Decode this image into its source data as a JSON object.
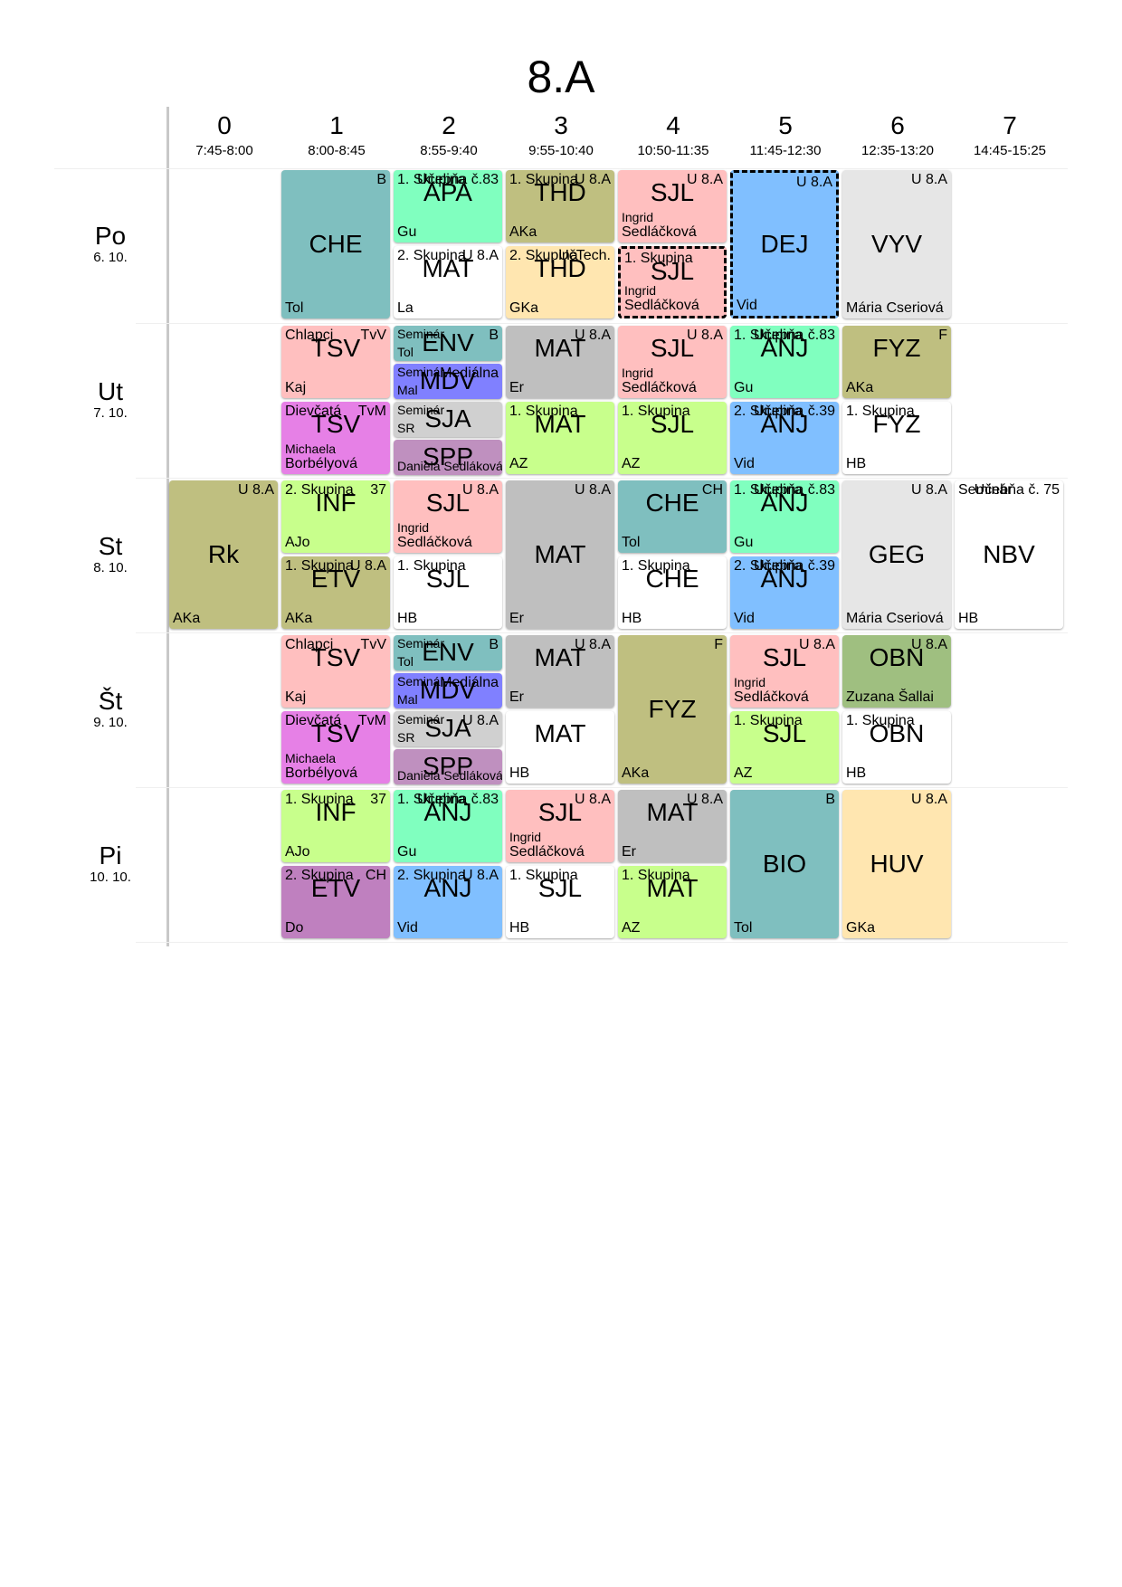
{
  "title": "8.A",
  "periods": [
    {
      "num": "0",
      "time": "7:45-8:00"
    },
    {
      "num": "1",
      "time": "8:00-8:45"
    },
    {
      "num": "2",
      "time": "8:55-9:40"
    },
    {
      "num": "3",
      "time": "9:55-10:40"
    },
    {
      "num": "4",
      "time": "10:50-11:35"
    },
    {
      "num": "5",
      "time": "11:45-12:30"
    },
    {
      "num": "6",
      "time": "12:35-13:20"
    },
    {
      "num": "7",
      "time": "14:45-15:25"
    }
  ],
  "days": [
    {
      "day": "Po",
      "date": "6. 10."
    },
    {
      "day": "Ut",
      "date": "7. 10."
    },
    {
      "day": "St",
      "date": "8. 10."
    },
    {
      "day": "Št",
      "date": "9. 10."
    },
    {
      "day": "Pi",
      "date": "10. 10."
    }
  ],
  "colors": {
    "teal": "#7fbfbf",
    "mint": "#80ffbf",
    "olive": "#bfbf80",
    "pink": "#ffbfbf",
    "blue": "#80bfff",
    "gray": "#e6e6e6",
    "white": "#ffffff",
    "peach": "#ffe6b0",
    "lime": "#c8ff8c",
    "violet": "#e680e6",
    "indigo": "#8080ff",
    "lgray": "#d0d0d0",
    "mauve": "#bf90bf",
    "dgray": "#bfbfbf",
    "sage": "#9fbf80",
    "purple": "#bf80bf"
  },
  "lessons": [
    {
      "subj": "CHE",
      "tl": "",
      "tr": "B",
      "bl": "Tol",
      "color": "teal"
    },
    {
      "subj": "APA",
      "tl": "1. Skupina",
      "tr": "Učebňa č.83",
      "bl": "Gu",
      "color": "mint"
    },
    {
      "subj": "MAT",
      "tl": "2. Skupina",
      "tr": "U 8.A",
      "bl": "La",
      "color": "white"
    },
    {
      "subj": "THD",
      "tl": "1. Skupina",
      "tr": "U 8.A",
      "bl": "AKa",
      "color": "olive"
    },
    {
      "subj": "THD",
      "tl": "2. Skupina",
      "tr": "UčTech.",
      "bl": "GKa",
      "color": "peach"
    },
    {
      "subj": "SJL",
      "tl": "",
      "tr": "U 8.A",
      "bl": "Sedláčková",
      "bl2": "Ingrid",
      "color": "pink"
    },
    {
      "subj": "SJL",
      "tl": "1. Skupina",
      "tr": "",
      "bl": "Sedláčková",
      "bl2": "Ingrid",
      "color": "pink"
    },
    {
      "subj": "DEJ",
      "tl": "",
      "tr": "U 8.A",
      "bl": "Vid",
      "color": "blue"
    },
    {
      "subj": "VYV",
      "tl": "",
      "tr": "U 8.A",
      "bl": "Mária Cseriová",
      "color": "gray"
    },
    {
      "subj": "TSV",
      "tl": "Chlapci",
      "tr": "TvV",
      "bl": "Kaj",
      "color": "pink"
    },
    {
      "subj": "TSV",
      "tl": "Dievčatá",
      "tr": "TvM",
      "bl": "Borbélyová",
      "bl2": "Michaela",
      "color": "violet"
    },
    {
      "subj": "ENV",
      "tl": "Seminár",
      "tr": "B",
      "bl": "Tol",
      "color": "teal"
    },
    {
      "subj": "MDV",
      "tl": "Seminár",
      "tr": "Mediálna",
      "bl": "Mal",
      "color": "indigo"
    },
    {
      "subj": "SJA",
      "tl": "Seminár",
      "tr": "",
      "bl": "SR",
      "color": "lgray"
    },
    {
      "subj": "SPP",
      "tl": "",
      "tr": "",
      "bl": "Daniela Sedláková",
      "color": "mauve"
    },
    {
      "subj": "MAT",
      "tl": "",
      "tr": "U 8.A",
      "bl": "Er",
      "color": "dgray"
    },
    {
      "subj": "MAT",
      "tl": "1. Skupina",
      "tr": "",
      "bl": "AZ",
      "color": "lime"
    },
    {
      "subj": "SJL",
      "tl": "",
      "tr": "U 8.A",
      "bl": "Sedláčková",
      "bl2": "Ingrid",
      "color": "pink"
    },
    {
      "subj": "SJL",
      "tl": "1. Skupina",
      "tr": "",
      "bl": "AZ",
      "color": "lime"
    },
    {
      "subj": "ANJ",
      "tl": "1. Skupina",
      "tr": "Učebňa č.83",
      "bl": "Gu",
      "color": "mint"
    },
    {
      "subj": "ANJ",
      "tl": "2. Skupina",
      "tr": "Učebňa č.39",
      "bl": "Vid",
      "color": "blue"
    },
    {
      "subj": "FYZ",
      "tl": "",
      "tr": "F",
      "bl": "AKa",
      "color": "olive"
    },
    {
      "subj": "FYZ",
      "tl": "1. Skupina",
      "tr": "",
      "bl": "HB",
      "color": "white"
    },
    {
      "subj": "Rk",
      "tl": "",
      "tr": "U 8.A",
      "bl": "AKa",
      "color": "olive"
    },
    {
      "subj": "INF",
      "tl": "2. Skupina",
      "tr": "37",
      "bl": "AJo",
      "color": "lime"
    },
    {
      "subj": "ETV",
      "tl": "1. Skupina",
      "tr": "U 8.A",
      "bl": "AKa",
      "color": "olive"
    },
    {
      "subj": "SJL",
      "tl": "",
      "tr": "U 8.A",
      "bl": "Sedláčková",
      "bl2": "Ingrid",
      "color": "pink"
    },
    {
      "subj": "SJL",
      "tl": "1. Skupina",
      "tr": "",
      "bl": "HB",
      "color": "white"
    },
    {
      "subj": "MAT",
      "tl": "",
      "tr": "U 8.A",
      "bl": "Er",
      "color": "dgray"
    },
    {
      "subj": "CHE",
      "tl": "",
      "tr": "CH",
      "bl": "Tol",
      "color": "teal"
    },
    {
      "subj": "CHE",
      "tl": "1. Skupina",
      "tr": "",
      "bl": "HB",
      "color": "white"
    },
    {
      "subj": "ANJ",
      "tl": "1. Skupina",
      "tr": "Učebňa č.83",
      "bl": "Gu",
      "color": "mint"
    },
    {
      "subj": "ANJ",
      "tl": "2. Skupina",
      "tr": "Učebňa č.39",
      "bl": "Vid",
      "color": "blue"
    },
    {
      "subj": "GEG",
      "tl": "",
      "tr": "U 8.A",
      "bl": "Mária Cseriová",
      "color": "gray"
    },
    {
      "subj": "NBV",
      "tl": "Seminár",
      "tr": "Učebňa č. 75",
      "bl": "HB",
      "color": "white"
    },
    {
      "subj": "TSV",
      "tl": "Chlapci",
      "tr": "TvV",
      "bl": "Kaj",
      "color": "pink"
    },
    {
      "subj": "TSV",
      "tl": "Dievčatá",
      "tr": "TvM",
      "bl": "Borbélyová",
      "bl2": "Michaela",
      "color": "violet"
    },
    {
      "subj": "ENV",
      "tl": "Seminár",
      "tr": "B",
      "bl": "Tol",
      "color": "teal"
    },
    {
      "subj": "MDV",
      "tl": "Seminár",
      "tr": "Mediálna",
      "bl": "Mal",
      "color": "indigo"
    },
    {
      "subj": "SJA",
      "tl": "Seminár",
      "tr": "U 8.A",
      "bl": "SR",
      "color": "lgray"
    },
    {
      "subj": "SPP",
      "tl": "",
      "tr": "",
      "bl": "Daniela Sedláková",
      "color": "mauve"
    },
    {
      "subj": "MAT",
      "tl": "",
      "tr": "U 8.A",
      "bl": "Er",
      "color": "dgray"
    },
    {
      "subj": "MAT",
      "tl": "",
      "tr": "",
      "bl": "HB",
      "color": "white"
    },
    {
      "subj": "FYZ",
      "tl": "",
      "tr": "F",
      "bl": "AKa",
      "color": "olive"
    },
    {
      "subj": "SJL",
      "tl": "",
      "tr": "U 8.A",
      "bl": "Sedláčková",
      "bl2": "Ingrid",
      "color": "pink"
    },
    {
      "subj": "SJL",
      "tl": "1. Skupina",
      "tr": "",
      "bl": "AZ",
      "color": "lime"
    },
    {
      "subj": "OBN",
      "tl": "",
      "tr": "U 8.A",
      "bl": "Zuzana Šallai",
      "color": "sage"
    },
    {
      "subj": "OBN",
      "tl": "1. Skupina",
      "tr": "",
      "bl": "HB",
      "color": "white"
    },
    {
      "subj": "INF",
      "tl": "1. Skupina",
      "tr": "37",
      "bl": "AJo",
      "color": "lime"
    },
    {
      "subj": "ETV",
      "tl": "2. Skupina",
      "tr": "CH",
      "bl": "Do",
      "color": "purple"
    },
    {
      "subj": "ANJ",
      "tl": "1. Skupina",
      "tr": "Učebňa č.83",
      "bl": "Gu",
      "color": "mint"
    },
    {
      "subj": "ANJ",
      "tl": "2. Skupina",
      "tr": "U 8.A",
      "bl": "Vid",
      "color": "blue"
    },
    {
      "subj": "SJL",
      "tl": "",
      "tr": "U 8.A",
      "bl": "Sedláčková",
      "bl2": "Ingrid",
      "color": "pink"
    },
    {
      "subj": "SJL",
      "tl": "1. Skupina",
      "tr": "",
      "bl": "HB",
      "color": "white"
    },
    {
      "subj": "MAT",
      "tl": "",
      "tr": "U 8.A",
      "bl": "Er",
      "color": "dgray"
    },
    {
      "subj": "MAT",
      "tl": "1. Skupina",
      "tr": "",
      "bl": "AZ",
      "color": "lime"
    },
    {
      "subj": "BIO",
      "tl": "",
      "tr": "B",
      "bl": "Tol",
      "color": "teal"
    },
    {
      "subj": "HUV",
      "tl": "",
      "tr": "U 8.A",
      "bl": "GKa",
      "color": "peach"
    }
  ]
}
